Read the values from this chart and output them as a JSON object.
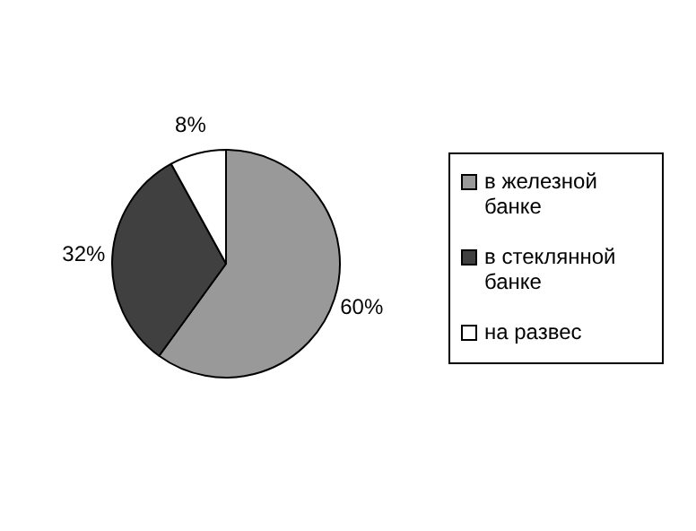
{
  "chart_data": {
    "type": "pie",
    "categories": [
      "в железной банке",
      "в стеклянной банке",
      "на развес"
    ],
    "values": [
      60,
      32,
      8
    ],
    "colors": [
      "#999999",
      "#404040",
      "#ffffff"
    ],
    "value_labels": [
      "60%",
      "32%",
      "8%"
    ],
    "legend": "right"
  }
}
